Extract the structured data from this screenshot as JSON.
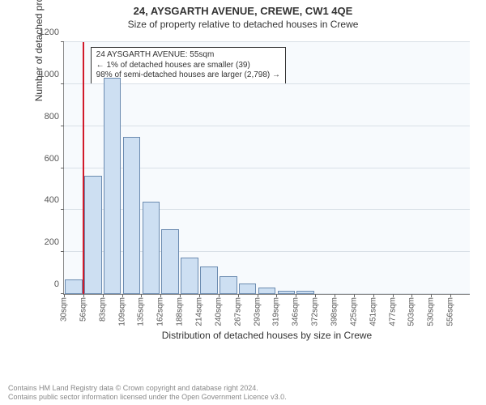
{
  "title": "24, AYSGARTH AVENUE, CREWE, CW1 4QE",
  "subtitle": "Size of property relative to detached houses in Crewe",
  "chart": {
    "type": "histogram",
    "background_color": "#f7fafd",
    "grid_color": "#d9e0e7",
    "bar_fill": "#cddff2",
    "bar_border": "#6b8bb0",
    "marker_color": "#d11a2a",
    "y_label": "Number of detached properties",
    "x_label": "Distribution of detached houses by size in Crewe",
    "y_max": 1200,
    "y_ticks": [
      0,
      200,
      400,
      600,
      800,
      1000,
      1200
    ],
    "x_tick_labels": [
      "30sqm",
      "56sqm",
      "83sqm",
      "109sqm",
      "135sqm",
      "162sqm",
      "188sqm",
      "214sqm",
      "240sqm",
      "267sqm",
      "293sqm",
      "319sqm",
      "346sqm",
      "372sqm",
      "398sqm",
      "425sqm",
      "451sqm",
      "477sqm",
      "503sqm",
      "530sqm",
      "556sqm"
    ],
    "bar_values": [
      70,
      565,
      1030,
      750,
      440,
      310,
      175,
      130,
      85,
      50,
      30,
      15,
      15,
      0,
      0,
      0,
      0,
      0,
      0,
      0,
      0
    ],
    "marker_x_index": 1,
    "annotation": {
      "line1": "24 AYSGARTH AVENUE: 55sqm",
      "line2": "← 1% of detached houses are smaller (39)",
      "line3": "98% of semi-detached houses are larger (2,798) →"
    }
  },
  "footer": {
    "line1": "Contains HM Land Registry data © Crown copyright and database right 2024.",
    "line2": "Contains public sector information licensed under the Open Government Licence v3.0."
  }
}
